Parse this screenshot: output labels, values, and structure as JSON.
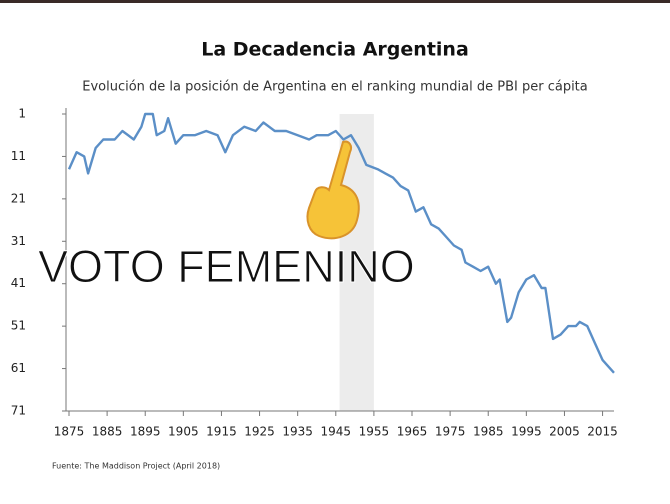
{
  "chart_data": {
    "type": "line",
    "title": "La Decadencia Argentina",
    "subtitle": "Evolución de la posición de Argentina en el ranking mundial de PBI per cápita",
    "source": "Fuente: The Maddison Project (April 2018)",
    "annotation": "VOTO FEMENINO",
    "y_inverted": true,
    "highlight_x": [
      1946,
      1955
    ],
    "xlim": [
      1875,
      2018
    ],
    "xticks": [
      1875,
      1885,
      1895,
      1905,
      1915,
      1925,
      1935,
      1945,
      1955,
      1965,
      1975,
      1985,
      1995,
      2005,
      2015
    ],
    "ylim": [
      1,
      71
    ],
    "yticks": [
      1,
      11,
      21,
      31,
      41,
      51,
      61,
      71
    ],
    "series": [
      {
        "name": "Argentina",
        "color": "#5b8fc7",
        "x": [
          1875,
          1877,
          1879,
          1880,
          1882,
          1884,
          1887,
          1889,
          1892,
          1894,
          1895,
          1897,
          1898,
          1900,
          1901,
          1903,
          1905,
          1908,
          1911,
          1914,
          1916,
          1918,
          1921,
          1924,
          1926,
          1929,
          1932,
          1935,
          1938,
          1940,
          1943,
          1945,
          1947,
          1949,
          1951,
          1953,
          1956,
          1958,
          1960,
          1962,
          1964,
          1966,
          1968,
          1970,
          1972,
          1974,
          1976,
          1978,
          1979,
          1981,
          1983,
          1985,
          1987,
          1988,
          1990,
          1991,
          1993,
          1995,
          1997,
          1999,
          2000,
          2002,
          2004,
          2006,
          2008,
          2009,
          2011,
          2013,
          2015,
          2017,
          2018
        ],
        "values": [
          14,
          10,
          11,
          15,
          9,
          7,
          7,
          5,
          7,
          4,
          1,
          1,
          6,
          5,
          2,
          8,
          6,
          6,
          5,
          6,
          10,
          6,
          4,
          5,
          3,
          5,
          5,
          6,
          7,
          6,
          6,
          5,
          7,
          6,
          9,
          13,
          14,
          15,
          16,
          18,
          19,
          24,
          23,
          27,
          28,
          30,
          32,
          33,
          36,
          37,
          38,
          37,
          41,
          40,
          50,
          49,
          43,
          40,
          39,
          42,
          42,
          54,
          53,
          51,
          51,
          50,
          51,
          55,
          59,
          61,
          62
        ]
      }
    ]
  }
}
